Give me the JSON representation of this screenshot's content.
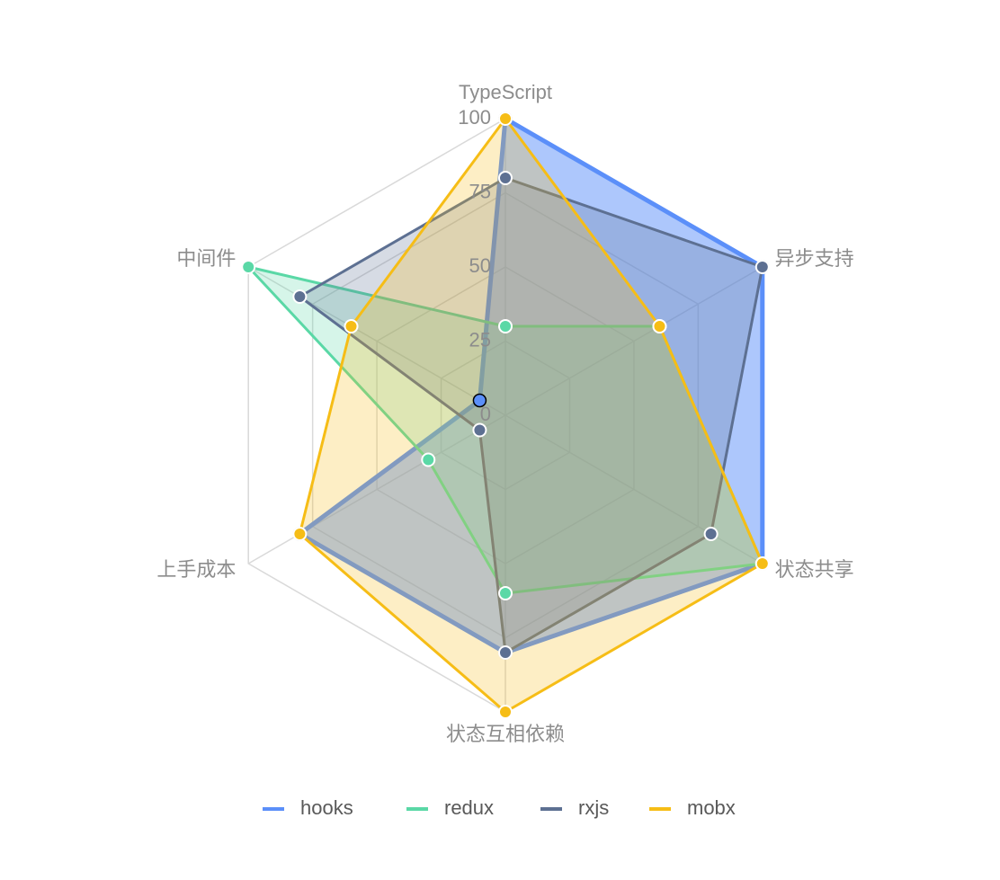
{
  "chart_data": {
    "type": "radar",
    "categories": [
      "TypeScript",
      "异步支持",
      "状态共享",
      "状态互相依赖",
      "上手成本",
      "中间件"
    ],
    "series": [
      {
        "name": "hooks",
        "color": "#5B8FF9",
        "values": [
          100,
          100,
          100,
          80,
          80,
          10
        ]
      },
      {
        "name": "redux",
        "color": "#5AD8A6",
        "values": [
          30,
          60,
          100,
          60,
          30,
          100
        ]
      },
      {
        "name": "rxjs",
        "color": "#5D7092",
        "values": [
          80,
          100,
          80,
          80,
          10,
          80
        ]
      },
      {
        "name": "mobx",
        "color": "#F6BD16",
        "values": [
          100,
          60,
          100,
          100,
          80,
          60
        ]
      }
    ],
    "rlim": [
      0,
      100
    ],
    "rticks": [
      0,
      25,
      50,
      75,
      100
    ],
    "grid": true,
    "legend": "bottom"
  }
}
